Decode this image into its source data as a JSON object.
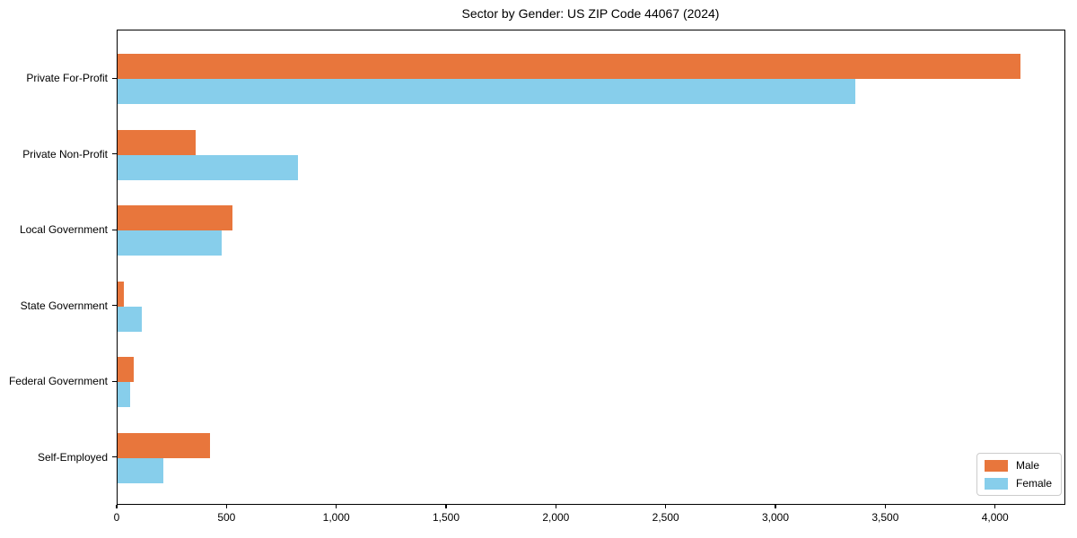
{
  "title": "Sector by Gender: US ZIP Code 44067 (2024)",
  "chart_data": {
    "type": "bar",
    "orientation": "horizontal",
    "title": "Sector by Gender: US ZIP Code 44067 (2024)",
    "categories": [
      "Private For-Profit",
      "Private Non-Profit",
      "Local Government",
      "State Government",
      "Federal Government",
      "Self-Employed"
    ],
    "series": [
      {
        "name": "Male",
        "color": "#E8763C",
        "values": [
          4110,
          355,
          522,
          28,
          73,
          420
        ]
      },
      {
        "name": "Female",
        "color": "#87CEEB",
        "values": [
          3360,
          822,
          476,
          110,
          57,
          209
        ]
      }
    ],
    "xlabel": "",
    "ylabel": "",
    "xlim": [
      0,
      4320
    ],
    "x_tick_values": [
      0,
      500,
      1000,
      1500,
      2000,
      2500,
      3000,
      3500,
      4000
    ],
    "x_tick_labels": [
      "0",
      "500",
      "1,000",
      "1,500",
      "2,000",
      "2,500",
      "3,000",
      "3,500",
      "4,000"
    ],
    "grid": false,
    "legend": {
      "position": "lower right",
      "entries": [
        "Male",
        "Female"
      ]
    }
  }
}
